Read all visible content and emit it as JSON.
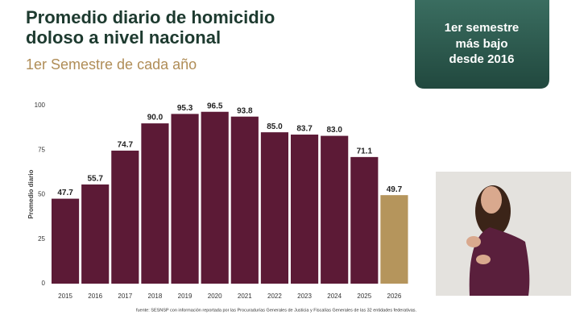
{
  "chart_data": {
    "type": "bar",
    "title": [
      "Promedio diario de homicidio",
      "doloso a nivel nacional"
    ],
    "subtitle": "1er Semestre de cada año",
    "badge": [
      "1er semestre",
      "más bajo",
      "desde 2016"
    ],
    "y_label": "Promedio diario",
    "source": "fuente: SESNSP con información reportada por las Procuradurías Generales de Justicia y Fiscalías Generales de las 32 entidades federativas.",
    "categories": [
      "2015",
      "2016",
      "2017",
      "2018",
      "2019",
      "2020",
      "2021",
      "2022",
      "2023",
      "2024",
      "2025",
      "2026"
    ],
    "values": [
      47.7,
      55.7,
      74.7,
      90.0,
      95.3,
      96.5,
      93.8,
      85.0,
      83.7,
      83.0,
      71.1,
      49.7
    ],
    "value_labels": [
      "47.7",
      "55.7",
      "74.7",
      "90.0",
      "95.3",
      "96.5",
      "93.8",
      "85.0",
      "83.7",
      "83.0",
      "71.1",
      "49.7"
    ],
    "colors": [
      "#5c1a36",
      "#5c1a36",
      "#5c1a36",
      "#5c1a36",
      "#5c1a36",
      "#5c1a36",
      "#5c1a36",
      "#5c1a36",
      "#5c1a36",
      "#5c1a36",
      "#5c1a36",
      "#b5955c"
    ],
    "ylim": [
      0,
      100
    ],
    "yticks": [
      0,
      25,
      50,
      75,
      100
    ],
    "grid": false
  }
}
